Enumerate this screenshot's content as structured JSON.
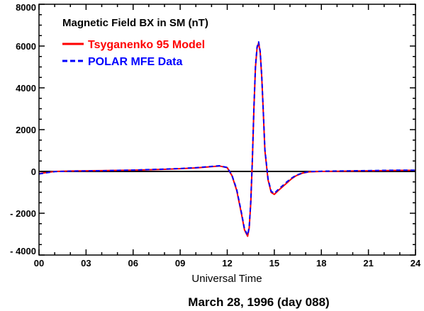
{
  "chart_data": {
    "type": "line",
    "title": "Magnetic Field BX in SM (nT)",
    "xlabel": "Universal Time",
    "ylabel": "",
    "caption": "March 28, 1996 (day 088)",
    "xlim": [
      0,
      24
    ],
    "ylim": [
      -4000,
      8000
    ],
    "x_ticks": [
      0,
      3,
      6,
      9,
      12,
      15,
      18,
      21,
      24
    ],
    "x_tick_labels": [
      "00",
      "03",
      "06",
      "09",
      "12",
      "15",
      "18",
      "21",
      "24"
    ],
    "y_ticks": [
      -4000,
      -2000,
      0,
      2000,
      4000,
      6000,
      8000
    ],
    "y_tick_labels": [
      "- 4000",
      "- 2000",
      "0",
      "2000",
      "4000",
      "6000",
      "8000"
    ],
    "zero_line": true,
    "grid": false,
    "legend_position": "top-left",
    "series": [
      {
        "name": "Tsyganenko 95 Model",
        "color": "#ff0000",
        "style": "solid",
        "x": [
          0,
          0.5,
          1,
          2,
          3,
          4,
          5,
          6,
          7,
          8,
          9,
          10,
          11,
          11.5,
          12,
          12.3,
          12.6,
          12.9,
          13.1,
          13.3,
          13.4,
          13.5,
          13.6,
          13.7,
          13.8,
          13.9,
          14.0,
          14.1,
          14.2,
          14.3,
          14.4,
          14.6,
          14.8,
          15.0,
          15.2,
          15.5,
          15.8,
          16.1,
          16.4,
          16.8,
          17.2,
          18,
          19,
          20,
          21,
          22,
          23,
          24
        ],
        "y": [
          -100,
          -50,
          0,
          20,
          30,
          40,
          50,
          60,
          80,
          100,
          130,
          170,
          230,
          260,
          180,
          -200,
          -900,
          -2000,
          -2800,
          -3100,
          -2700,
          -1500,
          500,
          3000,
          5000,
          5900,
          6150,
          5700,
          4500,
          2800,
          1000,
          -400,
          -1000,
          -1100,
          -950,
          -750,
          -550,
          -350,
          -200,
          -80,
          -20,
          0,
          10,
          20,
          30,
          40,
          50,
          50
        ]
      },
      {
        "name": "POLAR MFE Data",
        "color": "#0000ff",
        "style": "dashed",
        "x": [
          0,
          0.5,
          1,
          2,
          3,
          4,
          5,
          6,
          7,
          8,
          9,
          10,
          11,
          11.5,
          12,
          12.3,
          12.6,
          12.9,
          13.1,
          13.3,
          13.4,
          13.5,
          13.6,
          13.7,
          13.8,
          13.9,
          14.0,
          14.1,
          14.2,
          14.3,
          14.4,
          14.6,
          14.8,
          15.0,
          15.2,
          15.5,
          15.8,
          16.1,
          16.4,
          16.8,
          17.2,
          18,
          19,
          20,
          21,
          22,
          23,
          24
        ],
        "y": [
          -120,
          -60,
          -10,
          15,
          25,
          35,
          50,
          65,
          90,
          110,
          140,
          180,
          240,
          270,
          190,
          -180,
          -850,
          -1950,
          -2750,
          -3050,
          -2650,
          -1450,
          550,
          3050,
          5050,
          5950,
          6200,
          5750,
          4550,
          2850,
          1050,
          -350,
          -950,
          -1050,
          -900,
          -700,
          -500,
          -320,
          -180,
          -70,
          -10,
          10,
          20,
          30,
          40,
          50,
          60,
          60
        ]
      }
    ]
  },
  "colors": {
    "axis": "#000000",
    "zero_line": "#000000",
    "background": "#ffffff"
  }
}
